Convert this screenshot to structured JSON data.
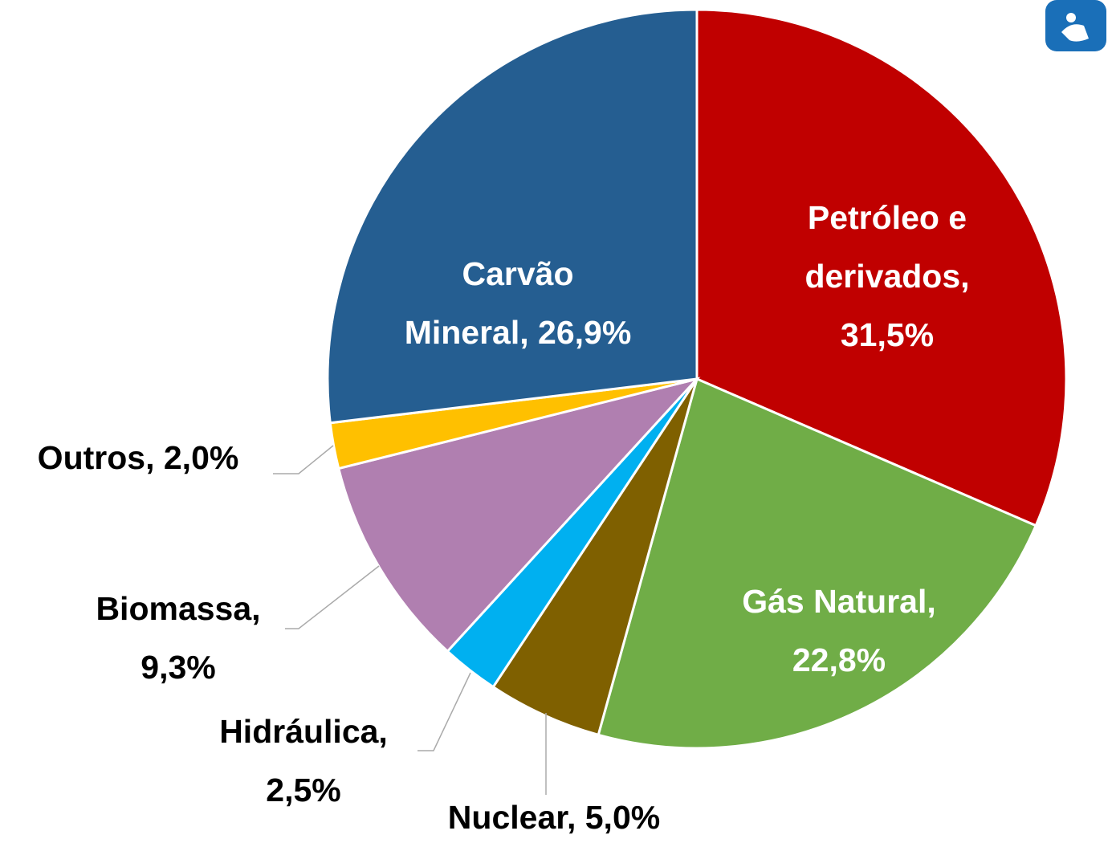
{
  "chart_data": {
    "type": "pie",
    "categories": [
      "Petróleo e derivados,",
      "Gás Natural,",
      "Nuclear,",
      "Hidráulica,",
      "Biomassa,",
      "Outros,",
      "Carvão Mineral,"
    ],
    "values": [
      31.5,
      22.8,
      5.0,
      2.5,
      9.3,
      2.0,
      26.9
    ],
    "value_labels": [
      "31,5%",
      "22,8%",
      "5,0%",
      "2,5%",
      "9,3%",
      "2,0%",
      "26,9%"
    ],
    "colors": [
      "#c00000",
      "#70ad47",
      "#7f6000",
      "#00b0f0",
      "#b07fb0",
      "#ffc000",
      "#255e91"
    ]
  }
}
